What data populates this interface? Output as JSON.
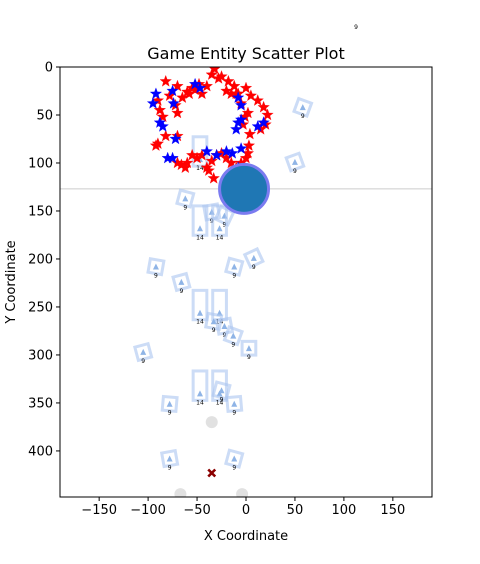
{
  "chart_data": {
    "type": "scatter",
    "title": "Game Entity Scatter Plot",
    "xlabel": "X Coordinate",
    "ylabel": "Y Coordinate",
    "xlim": [
      -190,
      190
    ],
    "ylim": [
      448,
      0
    ],
    "y_inverted": true,
    "grid": false,
    "legend": "none",
    "x_ticks": [
      -150,
      -100,
      -50,
      0,
      50,
      100,
      150
    ],
    "y_ticks": [
      0,
      50,
      100,
      150,
      200,
      250,
      300,
      350,
      400
    ],
    "stray_label": "9",
    "horizontal_line": {
      "y": 127,
      "color": "#cccccc"
    },
    "circle": {
      "x": -2,
      "y": 127,
      "radius": 25,
      "fill": "#1f77b4",
      "ring": "#7b7bf0"
    },
    "marker_x": {
      "x": -35,
      "y": 423,
      "color": "#8b0000"
    },
    "gray_circles": [
      {
        "x": -35,
        "y": 370
      },
      {
        "x": -67,
        "y": 445
      },
      {
        "x": -4,
        "y": 445
      }
    ],
    "series": [
      {
        "marker": "star",
        "color": "#ff0000",
        "points": [
          [
            -82,
            15
          ],
          [
            -70,
            20
          ],
          [
            -55,
            22
          ],
          [
            -48,
            18
          ],
          [
            -35,
            8
          ],
          [
            -32,
            2
          ],
          [
            -28,
            12
          ],
          [
            -20,
            25
          ],
          [
            -12,
            20
          ],
          [
            -10,
            28
          ],
          [
            0,
            22
          ],
          [
            5,
            30
          ],
          [
            12,
            35
          ],
          [
            18,
            42
          ],
          [
            22,
            50
          ],
          [
            20,
            60
          ],
          [
            15,
            65
          ],
          [
            -90,
            35
          ],
          [
            -88,
            45
          ],
          [
            -85,
            52
          ],
          [
            -78,
            30
          ],
          [
            -72,
            40
          ],
          [
            -70,
            48
          ],
          [
            -65,
            32
          ],
          [
            -60,
            26
          ],
          [
            -58,
            28
          ],
          [
            -52,
            24
          ],
          [
            -90,
            80
          ],
          [
            -92,
            82
          ],
          [
            -82,
            72
          ],
          [
            -70,
            72
          ],
          [
            4,
            70
          ],
          [
            3,
            82
          ],
          [
            2,
            90
          ],
          [
            0,
            95
          ],
          [
            -5,
            100
          ],
          [
            -10,
            105
          ],
          [
            -15,
            100
          ],
          [
            -20,
            95
          ],
          [
            -25,
            90
          ],
          [
            -30,
            92
          ],
          [
            -35,
            98
          ],
          [
            -40,
            105
          ],
          [
            -45,
            92
          ],
          [
            -50,
            95
          ],
          [
            -55,
            92
          ],
          [
            -60,
            100
          ],
          [
            -62,
            105
          ],
          [
            -66,
            102
          ],
          [
            -70,
            100
          ],
          [
            -38,
            108
          ],
          [
            -33,
            116
          ],
          [
            -3,
            60
          ],
          [
            -1,
            52
          ],
          [
            2,
            48
          ],
          [
            -5,
            38
          ],
          [
            -8,
            28
          ],
          [
            -15,
            28
          ],
          [
            -18,
            15
          ],
          [
            -25,
            10
          ],
          [
            -40,
            20
          ],
          [
            -45,
            28
          ]
        ]
      },
      {
        "marker": "star",
        "color": "#0000ff",
        "points": [
          [
            -95,
            38
          ],
          [
            -92,
            28
          ],
          [
            -88,
            58
          ],
          [
            -85,
            62
          ],
          [
            -75,
            25
          ],
          [
            -74,
            38
          ],
          [
            -72,
            75
          ],
          [
            -80,
            95
          ],
          [
            -75,
            95
          ],
          [
            -47,
            22
          ],
          [
            -52,
            18
          ],
          [
            -8,
            32
          ],
          [
            -5,
            40
          ],
          [
            -5,
            55
          ],
          [
            -8,
            58
          ],
          [
            -10,
            65
          ],
          [
            12,
            62
          ],
          [
            18,
            58
          ],
          [
            -5,
            85
          ],
          [
            -20,
            88
          ],
          [
            -30,
            92
          ],
          [
            -40,
            88
          ],
          [
            -12,
            112
          ],
          [
            -8,
            105
          ],
          [
            -14,
            90
          ]
        ]
      }
    ],
    "rectangles": [
      {
        "x": -47,
        "y": 88,
        "w": 14,
        "h": 30,
        "angle": 0,
        "label": "14",
        "color": "#aac4f0"
      },
      {
        "x": 58,
        "y": 42,
        "w": 14,
        "h": 14,
        "angle": 20,
        "label": "9",
        "color": "#aac4f0"
      },
      {
        "x": 50,
        "y": 99,
        "w": 14,
        "h": 14,
        "angle": -20,
        "label": "9",
        "color": "#aac4f0"
      },
      {
        "x": -62,
        "y": 137,
        "w": 14,
        "h": 14,
        "angle": 15,
        "label": "9",
        "color": "#aac4f0"
      },
      {
        "x": -35,
        "y": 151,
        "w": 14,
        "h": 14,
        "angle": -10,
        "label": "9",
        "color": "#aac4f0"
      },
      {
        "x": -22,
        "y": 155,
        "w": 14,
        "h": 14,
        "angle": 25,
        "label": "9",
        "color": "#aac4f0"
      },
      {
        "x": -47,
        "y": 160,
        "w": 14,
        "h": 30,
        "angle": 0,
        "label": "14",
        "color": "#aac4f0"
      },
      {
        "x": -27,
        "y": 160,
        "w": 14,
        "h": 30,
        "angle": 0,
        "label": "14",
        "color": "#aac4f0"
      },
      {
        "x": -92,
        "y": 208,
        "w": 14,
        "h": 14,
        "angle": 10,
        "label": "9",
        "color": "#aac4f0"
      },
      {
        "x": -66,
        "y": 224,
        "w": 14,
        "h": 14,
        "angle": -15,
        "label": "9",
        "color": "#aac4f0"
      },
      {
        "x": -12,
        "y": 208,
        "w": 14,
        "h": 14,
        "angle": 15,
        "label": "9",
        "color": "#aac4f0"
      },
      {
        "x": 8,
        "y": 199,
        "w": 14,
        "h": 14,
        "angle": -25,
        "label": "9",
        "color": "#aac4f0"
      },
      {
        "x": -47,
        "y": 248,
        "w": 14,
        "h": 30,
        "angle": 0,
        "label": "14",
        "color": "#aac4f0"
      },
      {
        "x": -27,
        "y": 248,
        "w": 14,
        "h": 30,
        "angle": 0,
        "label": "14",
        "color": "#aac4f0"
      },
      {
        "x": -33,
        "y": 265,
        "w": 14,
        "h": 14,
        "angle": 10,
        "label": "9",
        "color": "#aac4f0"
      },
      {
        "x": -22,
        "y": 270,
        "w": 14,
        "h": 14,
        "angle": -10,
        "label": "9",
        "color": "#aac4f0"
      },
      {
        "x": -13,
        "y": 280,
        "w": 14,
        "h": 14,
        "angle": 20,
        "label": "9",
        "color": "#aac4f0"
      },
      {
        "x": 3,
        "y": 293,
        "w": 14,
        "h": 14,
        "angle": 0,
        "label": "9",
        "color": "#aac4f0"
      },
      {
        "x": -105,
        "y": 297,
        "w": 14,
        "h": 14,
        "angle": -15,
        "label": "9",
        "color": "#aac4f0"
      },
      {
        "x": -47,
        "y": 332,
        "w": 14,
        "h": 30,
        "angle": 0,
        "label": "14",
        "color": "#aac4f0"
      },
      {
        "x": -27,
        "y": 332,
        "w": 14,
        "h": 30,
        "angle": 0,
        "label": "14",
        "color": "#aac4f0"
      },
      {
        "x": -25,
        "y": 337,
        "w": 14,
        "h": 14,
        "angle": 15,
        "label": "9",
        "color": "#aac4f0"
      },
      {
        "x": -78,
        "y": 351,
        "w": 14,
        "h": 14,
        "angle": 5,
        "label": "9",
        "color": "#aac4f0"
      },
      {
        "x": -12,
        "y": 351,
        "w": 14,
        "h": 14,
        "angle": -5,
        "label": "9",
        "color": "#aac4f0"
      },
      {
        "x": -78,
        "y": 408,
        "w": 14,
        "h": 14,
        "angle": -10,
        "label": "9",
        "color": "#aac4f0"
      },
      {
        "x": -12,
        "y": 408,
        "w": 14,
        "h": 14,
        "angle": 15,
        "label": "9",
        "color": "#aac4f0"
      }
    ]
  }
}
